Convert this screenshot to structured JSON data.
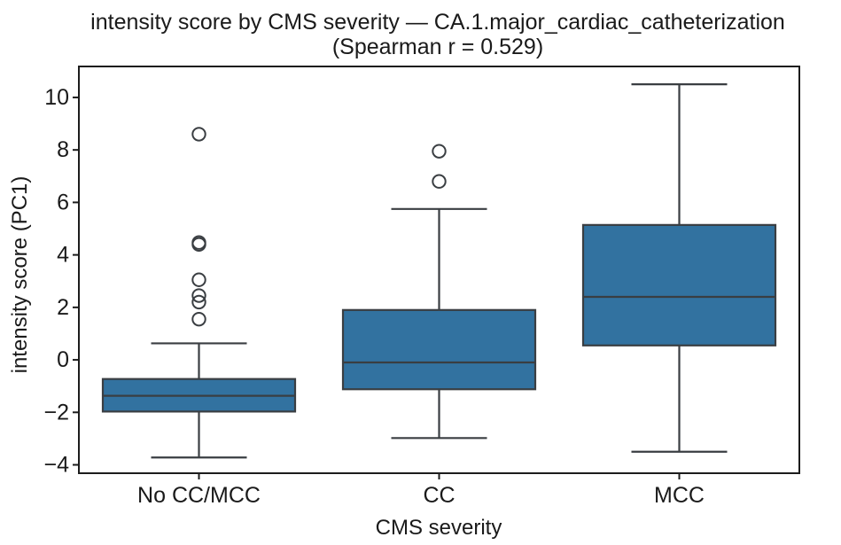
{
  "chart_data": {
    "type": "box",
    "title": "intensity score by CMS severity — CA.1.major_cardiac_catheterization",
    "subtitle": "(Spearman r = 0.529)",
    "xlabel": "CMS severity",
    "ylabel": "intensity score (PC1)",
    "categories": [
      "No CC/MCC",
      "CC",
      "MCC"
    ],
    "yticks": [
      -4,
      -2,
      0,
      2,
      4,
      6,
      8,
      10
    ],
    "ylim": [
      -4.32,
      11.18
    ],
    "grid": false,
    "legend": null,
    "boxes": [
      {
        "category": "No CC/MCC",
        "whisker_low": -3.72,
        "q1": -1.97,
        "median": -1.37,
        "q3": -0.73,
        "whisker_high": 0.63,
        "outliers": [
          1.55,
          2.2,
          2.45,
          3.05,
          4.4,
          4.47,
          8.6
        ]
      },
      {
        "category": "CC",
        "whisker_low": -2.98,
        "q1": -1.12,
        "median": -0.1,
        "q3": 1.9,
        "whisker_high": 5.75,
        "outliers": [
          6.8,
          7.95
        ]
      },
      {
        "category": "MCC",
        "whisker_low": -3.5,
        "q1": 0.55,
        "median": 2.4,
        "q3": 5.14,
        "whisker_high": 10.5,
        "outliers": []
      }
    ],
    "colors": {
      "box_fill": "#3272A0",
      "box_edge": "#3A3E42",
      "spine": "#1C1C1C",
      "text": "#1A1A1A",
      "background": "#FFFFFF"
    }
  }
}
